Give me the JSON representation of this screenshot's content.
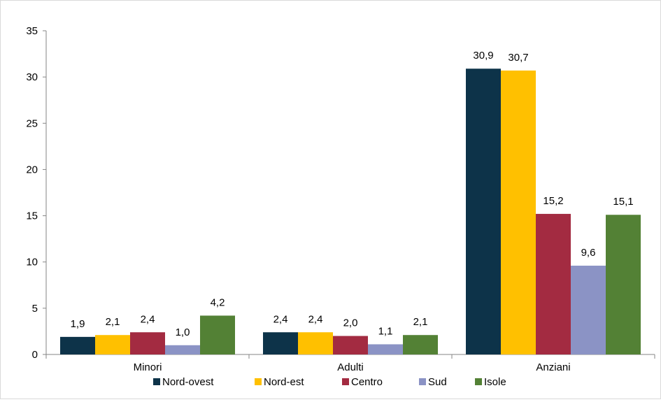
{
  "chart_data": {
    "type": "bar",
    "categories": [
      "Minori",
      "Adulti",
      "Anziani"
    ],
    "series": [
      {
        "name": "Nord-ovest",
        "values": [
          1.9,
          2.4,
          30.9
        ],
        "labels": [
          "1,9",
          "2,4",
          "30,9"
        ],
        "color": "#0d3349"
      },
      {
        "name": "Nord-est",
        "values": [
          2.1,
          2.4,
          30.7
        ],
        "labels": [
          "2,1",
          "2,4",
          "30,7"
        ],
        "color": "#ffc000"
      },
      {
        "name": "Centro",
        "values": [
          2.4,
          2.0,
          15.2
        ],
        "labels": [
          "2,4",
          "2,0",
          "15,2"
        ],
        "color": "#a32b41"
      },
      {
        "name": "Sud",
        "values": [
          1.0,
          1.1,
          9.6
        ],
        "labels": [
          "1,0",
          "1,1",
          "9,6"
        ],
        "color": "#8b93c5"
      },
      {
        "name": "Isole",
        "values": [
          4.2,
          2.1,
          15.1
        ],
        "labels": [
          "4,2",
          "2,1",
          "15,1"
        ],
        "color": "#538135"
      }
    ],
    "ylim": [
      0,
      35
    ],
    "yticks": [
      "0",
      "5",
      "10",
      "15",
      "20",
      "25",
      "30",
      "35"
    ],
    "grid": false,
    "legend_position": "bottom"
  }
}
